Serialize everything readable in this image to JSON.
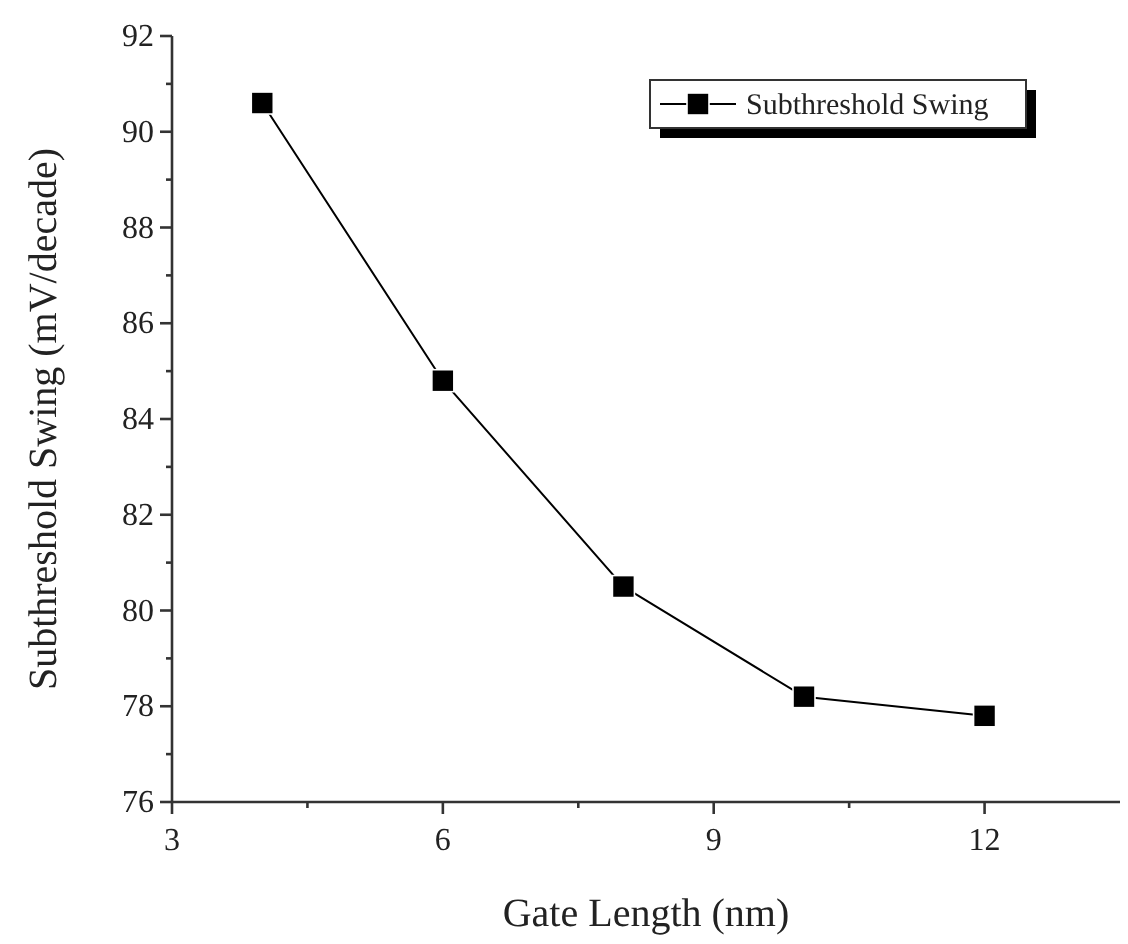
{
  "chart_data": {
    "type": "line",
    "xlabel": "Gate Length (nm)",
    "ylabel": "Subthreshold Swing (mV/decade)",
    "x": [
      4,
      6,
      8,
      10,
      12
    ],
    "series": [
      {
        "name": "Subthreshold Swing",
        "color": "#000000",
        "values": [
          90.6,
          84.8,
          80.5,
          78.2,
          77.8
        ]
      }
    ],
    "xlim": [
      3,
      13.5
    ],
    "xticks": [
      3,
      6,
      9,
      12
    ],
    "ylim": [
      76,
      92
    ],
    "yticks": [
      76,
      78,
      80,
      82,
      84,
      86,
      88,
      90,
      92
    ],
    "marker": "square",
    "line_style": "solid",
    "grid": false,
    "legend": "top right"
  }
}
